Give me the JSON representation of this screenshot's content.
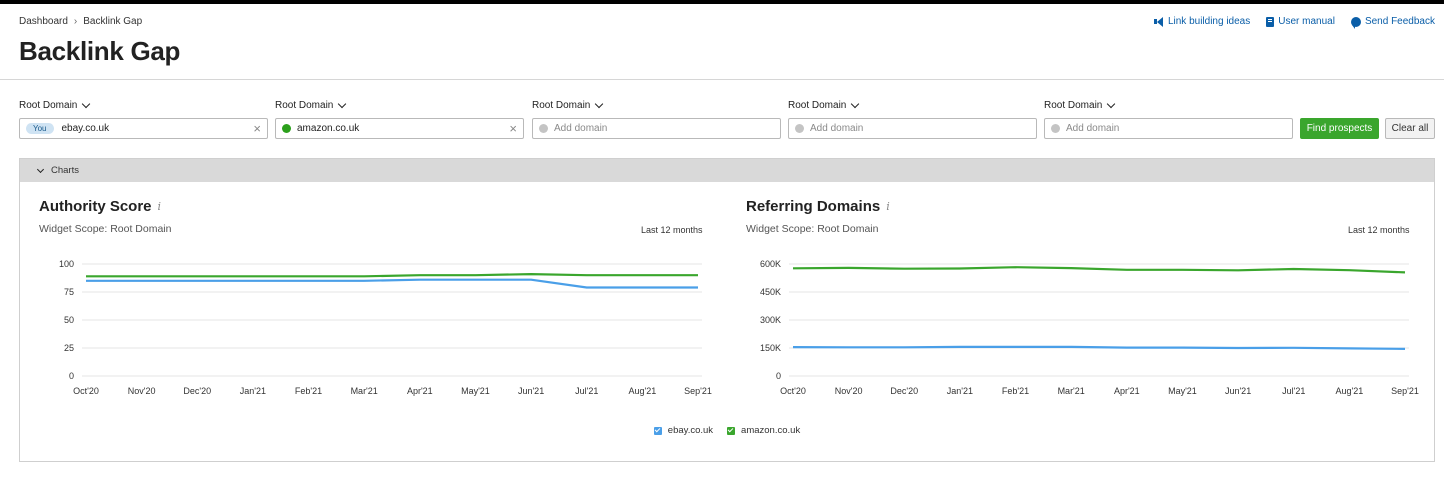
{
  "breadcrumb": {
    "home": "Dashboard",
    "current": "Backlink Gap"
  },
  "page_title": "Backlink Gap",
  "top_links": [
    {
      "label": "Link building ideas",
      "icon": "megaphone-icon"
    },
    {
      "label": "User manual",
      "icon": "book-icon"
    },
    {
      "label": "Send Feedback",
      "icon": "chat-bubble-icon"
    }
  ],
  "domains": [
    {
      "type_label": "Root Domain",
      "badge": "You",
      "value": "ebay.co.uk",
      "placeholder": ""
    },
    {
      "type_label": "Root Domain",
      "value": "amazon.co.uk",
      "placeholder": ""
    },
    {
      "type_label": "Root Domain",
      "value": "",
      "placeholder": "Add domain"
    },
    {
      "type_label": "Root Domain",
      "value": "",
      "placeholder": "Add domain"
    },
    {
      "type_label": "Root Domain",
      "value": "",
      "placeholder": "Add domain"
    }
  ],
  "buttons": {
    "find": "Find prospects",
    "clear": "Clear all"
  },
  "charts_section_label": "Charts",
  "colors": {
    "ebay": "#4a9fe8",
    "amazon": "#3aa62d",
    "accent_button": "#3aa62d",
    "link": "#0a5ea8"
  },
  "legend": [
    {
      "label": "ebay.co.uk",
      "color": "#4a9fe8"
    },
    {
      "label": "amazon.co.uk",
      "color": "#3aa62d"
    }
  ],
  "widgets": [
    {
      "title": "Authority Score",
      "info": "i",
      "scope": "Widget Scope: Root Domain",
      "period": "Last 12 months"
    },
    {
      "title": "Referring Domains",
      "info": "i",
      "scope": "Widget Scope: Root Domain",
      "period": "Last 12 months"
    }
  ],
  "chart_data": [
    {
      "type": "line",
      "title": "Authority Score",
      "categories": [
        "Oct'20",
        "Nov'20",
        "Dec'20",
        "Jan'21",
        "Feb'21",
        "Mar'21",
        "Apr'21",
        "May'21",
        "Jun'21",
        "Jul'21",
        "Aug'21",
        "Sep'21"
      ],
      "y_ticks": [
        "0",
        "25",
        "50",
        "75",
        "100"
      ],
      "ylim": [
        0,
        100
      ],
      "grid": true,
      "series": [
        {
          "name": "ebay.co.uk",
          "color": "#4a9fe8",
          "values": [
            85,
            85,
            85,
            85,
            85,
            85,
            86,
            86,
            86,
            79,
            79,
            79
          ]
        },
        {
          "name": "amazon.co.uk",
          "color": "#3aa62d",
          "values": [
            89,
            89,
            89,
            89,
            89,
            89,
            90,
            90,
            91,
            90,
            90,
            90
          ]
        }
      ]
    },
    {
      "type": "line",
      "title": "Referring Domains",
      "categories": [
        "Oct'20",
        "Nov'20",
        "Dec'20",
        "Jan'21",
        "Feb'21",
        "Mar'21",
        "Apr'21",
        "May'21",
        "Jun'21",
        "Jul'21",
        "Aug'21",
        "Sep'21"
      ],
      "y_ticks": [
        "0",
        "150K",
        "300K",
        "450K",
        "600K"
      ],
      "ylim": [
        0,
        600000
      ],
      "grid": true,
      "series": [
        {
          "name": "ebay.co.uk",
          "color": "#4a9fe8",
          "values": [
            155000,
            154000,
            154000,
            156000,
            156000,
            156000,
            152000,
            152000,
            150000,
            151000,
            148000,
            145000
          ]
        },
        {
          "name": "amazon.co.uk",
          "color": "#3aa62d",
          "values": [
            577000,
            579000,
            575000,
            576000,
            583000,
            578000,
            569000,
            569000,
            566000,
            573000,
            567000,
            555000
          ]
        }
      ]
    }
  ]
}
